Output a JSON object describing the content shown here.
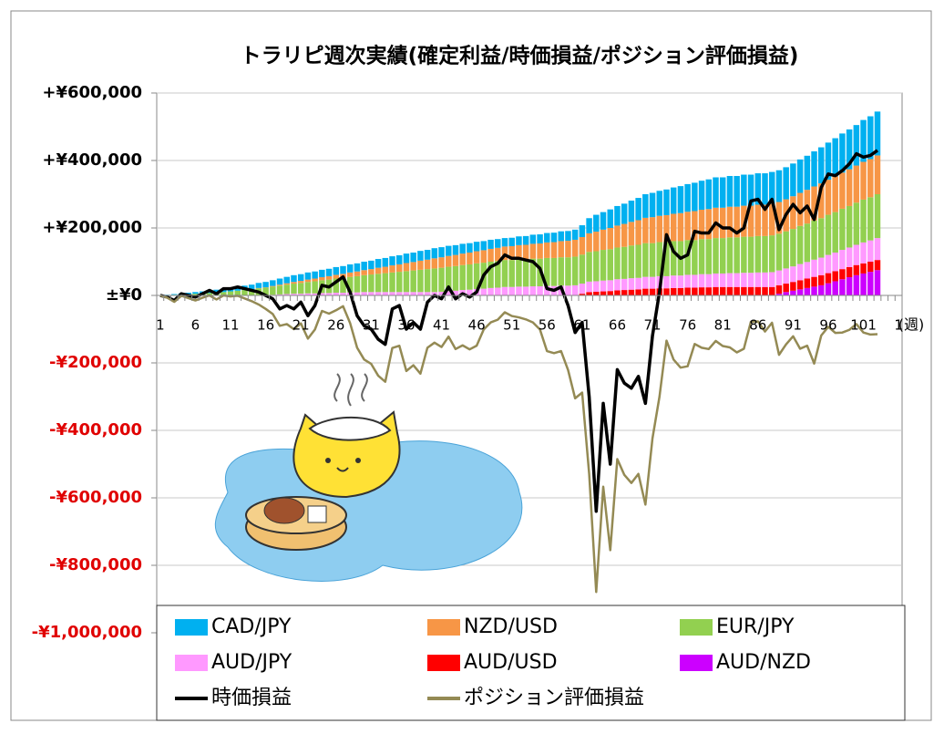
{
  "chart_data": {
    "type": "bar",
    "stacked": true,
    "title": "トラリピ週次実績(確定利益/時価損益/ポジション評価損益)",
    "x_label": "(週)",
    "categories": [
      "1",
      null,
      null,
      null,
      null,
      "6",
      null,
      null,
      null,
      null,
      "11",
      null,
      null,
      null,
      null,
      "16",
      null,
      null,
      null,
      null,
      "21",
      null,
      null,
      null,
      null,
      "26",
      null,
      null,
      null,
      null,
      "31",
      null,
      null,
      null,
      null,
      "36",
      null,
      null,
      null,
      null,
      "41",
      null,
      null,
      null,
      null,
      "46",
      null,
      null,
      null,
      null,
      "51",
      null,
      null,
      null,
      null,
      "56",
      null,
      null,
      null,
      null,
      "61",
      null,
      null,
      null,
      null,
      "66",
      null,
      null,
      null,
      null,
      "71",
      null,
      null,
      null,
      null,
      "76",
      null,
      null,
      null,
      null,
      "81",
      null,
      null,
      null,
      null,
      "86",
      null,
      null,
      null,
      null,
      "91",
      null,
      null,
      null,
      null,
      "96",
      null,
      null,
      null,
      null,
      "101",
      null,
      null,
      null,
      null,
      "1"
    ],
    "ylim": [
      -1000000,
      600000
    ],
    "yticks": [
      {
        "value": 600000,
        "label": "+¥600,000"
      },
      {
        "value": 400000,
        "label": "+¥400,000"
      },
      {
        "value": 200000,
        "label": "+¥200,000"
      },
      {
        "value": 0,
        "label": "±¥0"
      },
      {
        "value": -200000,
        "label": "-¥200,000"
      },
      {
        "value": -400000,
        "label": "-¥400,000"
      },
      {
        "value": -600000,
        "label": "-¥600,000"
      },
      {
        "value": -800000,
        "label": "-¥800,000"
      },
      {
        "value": -1000000,
        "label": "-¥1,000,000"
      }
    ],
    "grid": true,
    "negative_label_color": "#e00000",
    "series": [
      {
        "name": "CAD/JPY",
        "type": "bar",
        "color": "#00b0f0",
        "values": [
          0,
          1000,
          2000,
          3000,
          4000,
          5000,
          6000,
          8000,
          9000,
          10000,
          11000,
          12000,
          13000,
          14000,
          15000,
          16000,
          17000,
          18000,
          19000,
          20000,
          20000,
          21000,
          21000,
          22000,
          22000,
          23000,
          23000,
          24000,
          24000,
          25000,
          25000,
          26000,
          26000,
          27000,
          27000,
          28000,
          28000,
          29000,
          29000,
          30000,
          30000,
          30000,
          29000,
          29000,
          28000,
          28000,
          27000,
          27000,
          26000,
          25000,
          25000,
          26000,
          26000,
          27000,
          27000,
          28000,
          28000,
          29000,
          29000,
          30000,
          35000,
          45000,
          50000,
          52000,
          55000,
          58000,
          60000,
          63000,
          66000,
          70000,
          72000,
          74000,
          76000,
          78000,
          80000,
          82000,
          84000,
          86000,
          88000,
          90000,
          90000,
          91000,
          91000,
          92000,
          92000,
          93000,
          93000,
          94000,
          94000,
          95000,
          97000,
          99000,
          101000,
          104000,
          107000,
          110000,
          113000,
          116000,
          118000,
          120000,
          124000,
          127000,
          130000,
          null,
          null,
          null
        ]
      },
      {
        "name": "NZD/USD",
        "type": "bar",
        "color": "#f79646",
        "values": [
          0,
          0,
          0,
          0,
          0,
          0,
          0,
          0,
          0,
          0,
          0,
          0,
          0,
          0,
          1000,
          1000,
          2000,
          3000,
          4000,
          5000,
          6000,
          7000,
          8000,
          9000,
          10000,
          11000,
          12000,
          13000,
          14000,
          15000,
          16000,
          18000,
          19000,
          21000,
          22000,
          24000,
          25000,
          27000,
          28000,
          30000,
          31000,
          32000,
          33000,
          34000,
          35000,
          36000,
          37000,
          38000,
          39000,
          40000,
          41000,
          42000,
          43000,
          44000,
          45000,
          46000,
          47000,
          48000,
          49000,
          50000,
          52000,
          55000,
          58000,
          60000,
          63000,
          65000,
          68000,
          70000,
          73000,
          75000,
          77000,
          78000,
          80000,
          81000,
          83000,
          84000,
          86000,
          87000,
          89000,
          90000,
          90000,
          91000,
          91000,
          92000,
          92000,
          93000,
          93000,
          94000,
          94000,
          95000,
          97000,
          98000,
          100000,
          101000,
          103000,
          104000,
          106000,
          107000,
          109000,
          110000,
          112000,
          113000,
          115000,
          null,
          null,
          null
        ]
      },
      {
        "name": "EUR/JPY",
        "type": "bar",
        "color": "#92d050",
        "values": [
          0,
          1000,
          2000,
          3000,
          4000,
          5000,
          6000,
          7000,
          8000,
          10000,
          12000,
          14000,
          16000,
          18000,
          20000,
          22000,
          24000,
          26000,
          28000,
          30000,
          32000,
          34000,
          36000,
          38000,
          40000,
          42000,
          44000,
          46000,
          48000,
          50000,
          52000,
          54000,
          56000,
          58000,
          60000,
          62000,
          64000,
          66000,
          68000,
          70000,
          71000,
          72000,
          73000,
          74000,
          75000,
          76000,
          77000,
          78000,
          79000,
          80000,
          80000,
          81000,
          81000,
          82000,
          82000,
          83000,
          83000,
          84000,
          84000,
          85000,
          86000,
          88000,
          89000,
          91000,
          92000,
          94000,
          95000,
          97000,
          98000,
          100000,
          100000,
          101000,
          101000,
          102000,
          102000,
          103000,
          103000,
          104000,
          104000,
          105000,
          105000,
          106000,
          106000,
          107000,
          107000,
          108000,
          108000,
          109000,
          109000,
          110000,
          111000,
          113000,
          114000,
          116000,
          117000,
          119000,
          120000,
          122000,
          123000,
          125000,
          127000,
          128000,
          130000,
          null,
          null,
          null
        ]
      },
      {
        "name": "AUD/JPY",
        "type": "bar",
        "color": "#ff99ff",
        "values": [
          0,
          0,
          0,
          0,
          0,
          0,
          0,
          0,
          0,
          0,
          0,
          0,
          0,
          0,
          1000,
          1000,
          2000,
          3000,
          4000,
          5000,
          5000,
          6000,
          6000,
          7000,
          7000,
          8000,
          8000,
          9000,
          9000,
          10000,
          10000,
          10000,
          10000,
          10000,
          10000,
          10000,
          10000,
          10000,
          10000,
          10000,
          11000,
          13000,
          14000,
          16000,
          17000,
          19000,
          20000,
          22000,
          23000,
          25000,
          25000,
          26000,
          26000,
          27000,
          27000,
          28000,
          28000,
          29000,
          29000,
          30000,
          30000,
          31000,
          31000,
          32000,
          32000,
          33000,
          33000,
          34000,
          34000,
          35000,
          35000,
          36000,
          36000,
          37000,
          37000,
          38000,
          38000,
          39000,
          39000,
          40000,
          40000,
          41000,
          41000,
          42000,
          42000,
          43000,
          43000,
          44000,
          44000,
          45000,
          46000,
          48000,
          49000,
          51000,
          52000,
          54000,
          55000,
          57000,
          58000,
          60000,
          62000,
          63000,
          65000,
          null,
          null,
          null
        ]
      },
      {
        "name": "AUD/USD",
        "type": "bar",
        "color": "#ff0000",
        "values": [
          0,
          0,
          0,
          0,
          0,
          0,
          0,
          0,
          0,
          0,
          0,
          0,
          0,
          0,
          0,
          0,
          0,
          0,
          0,
          0,
          0,
          0,
          0,
          0,
          0,
          0,
          0,
          0,
          0,
          0,
          0,
          0,
          0,
          0,
          0,
          0,
          0,
          0,
          0,
          0,
          0,
          0,
          0,
          0,
          0,
          0,
          0,
          0,
          0,
          0,
          0,
          0,
          0,
          0,
          0,
          0,
          0,
          0,
          0,
          0,
          5000,
          10000,
          11000,
          12000,
          13000,
          15000,
          16000,
          17000,
          18000,
          20000,
          20000,
          21000,
          21000,
          22000,
          22000,
          23000,
          23000,
          24000,
          24000,
          25000,
          25000,
          25000,
          25000,
          25000,
          25000,
          25000,
          25000,
          25000,
          25000,
          25000,
          26000,
          27000,
          28000,
          29000,
          30000,
          30000,
          30000,
          30000,
          30000,
          30000,
          30000,
          30000,
          30000,
          null,
          null,
          null
        ]
      },
      {
        "name": "AUD/NZD",
        "type": "bar",
        "color": "#cc00ff",
        "values": [
          0,
          0,
          0,
          0,
          0,
          0,
          0,
          0,
          0,
          0,
          0,
          0,
          0,
          0,
          0,
          0,
          0,
          0,
          0,
          0,
          0,
          0,
          0,
          0,
          0,
          0,
          0,
          0,
          0,
          0,
          0,
          0,
          0,
          0,
          0,
          0,
          0,
          0,
          0,
          0,
          0,
          0,
          0,
          0,
          0,
          0,
          0,
          0,
          0,
          0,
          0,
          0,
          0,
          0,
          0,
          0,
          0,
          0,
          0,
          0,
          0,
          0,
          0,
          0,
          0,
          0,
          0,
          0,
          0,
          0,
          0,
          0,
          0,
          0,
          0,
          0,
          0,
          0,
          0,
          0,
          0,
          0,
          0,
          0,
          0,
          0,
          0,
          0,
          5000,
          10000,
          14000,
          18000,
          22000,
          26000,
          30000,
          36000,
          42000,
          48000,
          54000,
          60000,
          65000,
          70000,
          75000,
          null,
          null,
          null
        ]
      },
      {
        "name": "時価損益",
        "type": "line",
        "color": "#000000",
        "values": [
          0,
          -5000,
          -15000,
          5000,
          0,
          -5000,
          5000,
          15000,
          5000,
          20000,
          20000,
          25000,
          20000,
          15000,
          10000,
          0,
          -10000,
          -40000,
          -30000,
          -40000,
          -20000,
          -60000,
          -30000,
          30000,
          25000,
          40000,
          55000,
          10000,
          -60000,
          -90000,
          -100000,
          -130000,
          -145000,
          -40000,
          -30000,
          -100000,
          -80000,
          -100000,
          -20000,
          0,
          -10000,
          25000,
          -10000,
          5000,
          -5000,
          10000,
          60000,
          85000,
          95000,
          120000,
          110000,
          110000,
          105000,
          100000,
          80000,
          20000,
          15000,
          25000,
          -30000,
          -110000,
          -80000,
          -300000,
          -640000,
          -320000,
          -500000,
          -220000,
          -260000,
          -275000,
          -240000,
          -320000,
          -120000,
          10000,
          180000,
          130000,
          110000,
          120000,
          190000,
          185000,
          185000,
          215000,
          200000,
          200000,
          185000,
          200000,
          280000,
          285000,
          255000,
          285000,
          195000,
          240000,
          270000,
          245000,
          265000,
          225000,
          320000,
          360000,
          355000,
          370000,
          390000,
          420000,
          410000,
          415000,
          430000,
          null,
          null,
          null
        ]
      },
      {
        "name": "ポジション評価損益",
        "type": "line",
        "color": "#948a54",
        "values": [
          0,
          -7000,
          -19000,
          -1000,
          -8000,
          -15000,
          -7000,
          0,
          -12000,
          0,
          -3000,
          -1000,
          -9000,
          -17000,
          -27000,
          -40000,
          -55000,
          -90000,
          -85000,
          -100000,
          -83000,
          -128000,
          -101000,
          -46000,
          -54000,
          -44000,
          -32000,
          -82000,
          -155000,
          -190000,
          -203000,
          -238000,
          -256000,
          -156000,
          -149000,
          -224000,
          -207000,
          -232000,
          -155000,
          -140000,
          -153000,
          -122000,
          -159000,
          -148000,
          -160000,
          -149000,
          -101000,
          -80000,
          -72000,
          -50000,
          -61000,
          -65000,
          -71000,
          -80000,
          -101000,
          -165000,
          -171000,
          -165000,
          -221000,
          -305000,
          -288000,
          -529000,
          -879000,
          -567000,
          -755000,
          -485000,
          -532000,
          -556000,
          -529000,
          -620000,
          -424000,
          -300000,
          -134000,
          -190000,
          -214000,
          -210000,
          -144000,
          -155000,
          -159000,
          -135000,
          -150000,
          -154000,
          -169000,
          -158000,
          -78000,
          -77000,
          -107000,
          -81000,
          -176000,
          -145000,
          -121000,
          -158000,
          -149000,
          -202000,
          -119000,
          -93000,
          -111000,
          -110000,
          -102000,
          -85000,
          -110000,
          -116000,
          -115000,
          null,
          null,
          null
        ]
      }
    ]
  }
}
